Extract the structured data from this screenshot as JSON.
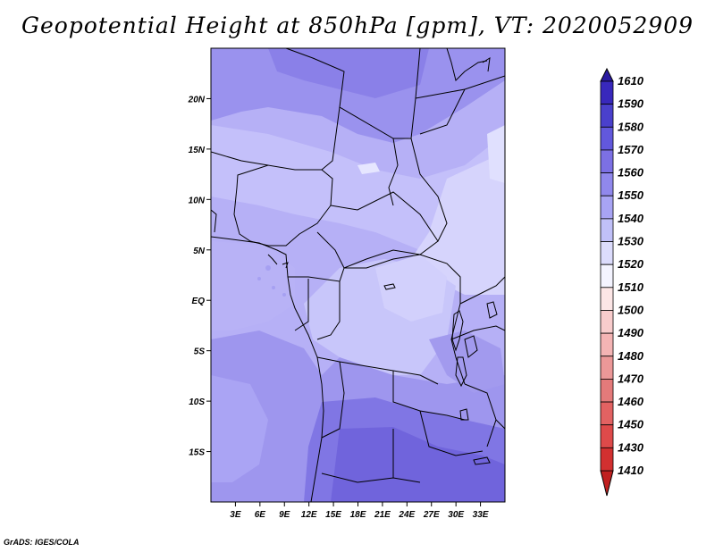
{
  "title": "Geopotential Height at 850hPa [gpm], VT: 2020052909",
  "credit": "GrADS: IGES/COLA",
  "map": {
    "lon_range": [
      0,
      36
    ],
    "lat_range": [
      -20,
      25
    ],
    "lat_ticks": [
      {
        "value": 20,
        "label": "20N"
      },
      {
        "value": 15,
        "label": "15N"
      },
      {
        "value": 10,
        "label": "10N"
      },
      {
        "value": 5,
        "label": "5N"
      },
      {
        "value": 0,
        "label": "EQ"
      },
      {
        "value": -5,
        "label": "5S"
      },
      {
        "value": -10,
        "label": "10S"
      },
      {
        "value": -15,
        "label": "15S"
      }
    ],
    "lon_ticks": [
      {
        "value": 3,
        "label": "3E"
      },
      {
        "value": 6,
        "label": "6E"
      },
      {
        "value": 9,
        "label": "9E"
      },
      {
        "value": 12,
        "label": "12E"
      },
      {
        "value": 15,
        "label": "15E"
      },
      {
        "value": 18,
        "label": "18E"
      },
      {
        "value": 21,
        "label": "21E"
      },
      {
        "value": 24,
        "label": "24E"
      },
      {
        "value": 27,
        "label": "27E"
      },
      {
        "value": 30,
        "label": "30E"
      },
      {
        "value": 33,
        "label": "33E"
      }
    ]
  },
  "colorbar": {
    "levels": [
      "1410",
      "1430",
      "1450",
      "1460",
      "1470",
      "1480",
      "1490",
      "1500",
      "1510",
      "1520",
      "1530",
      "1540",
      "1550",
      "1560",
      "1570",
      "1580",
      "1590",
      "1610"
    ],
    "colors": [
      "#c02020",
      "#d23030",
      "#de4a4a",
      "#e26262",
      "#e47a7a",
      "#ec9898",
      "#f4b4b4",
      "#f8cccc",
      "#fce6e6",
      "#f4f4ff",
      "#dcdcfc",
      "#c0c0f8",
      "#a8a4f4",
      "#9088ec",
      "#7c70e4",
      "#6258dc",
      "#4a40cc",
      "#3828bc",
      "#2a1aa0"
    ]
  }
}
